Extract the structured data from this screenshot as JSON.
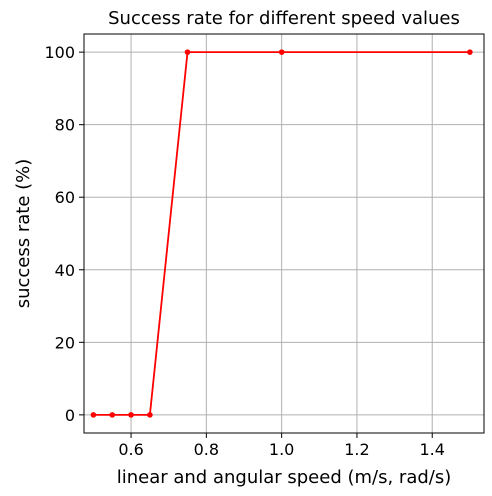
{
  "chart_data": {
    "type": "line",
    "title": "Success rate for different speed values",
    "xlabel": "linear and angular speed (m/s, rad/s)",
    "ylabel": "success rate (%)",
    "xlim": [
      0.475,
      1.5375
    ],
    "ylim": [
      -5,
      105
    ],
    "grid": true,
    "xticks": [
      0.6,
      0.8,
      1.0,
      1.2,
      1.4
    ],
    "xtick_labels": [
      "0.6",
      "0.8",
      "1.0",
      "1.2",
      "1.4"
    ],
    "yticks": [
      0,
      20,
      40,
      60,
      80,
      100
    ],
    "ytick_labels": [
      "0",
      "20",
      "40",
      "60",
      "80",
      "100"
    ],
    "series": [
      {
        "color": "#ff0000",
        "marker": "dot",
        "x": [
          0.5,
          0.55,
          0.6,
          0.65,
          0.75,
          1.0,
          1.5
        ],
        "y": [
          0,
          0,
          0,
          0,
          100,
          100,
          100
        ]
      }
    ]
  }
}
